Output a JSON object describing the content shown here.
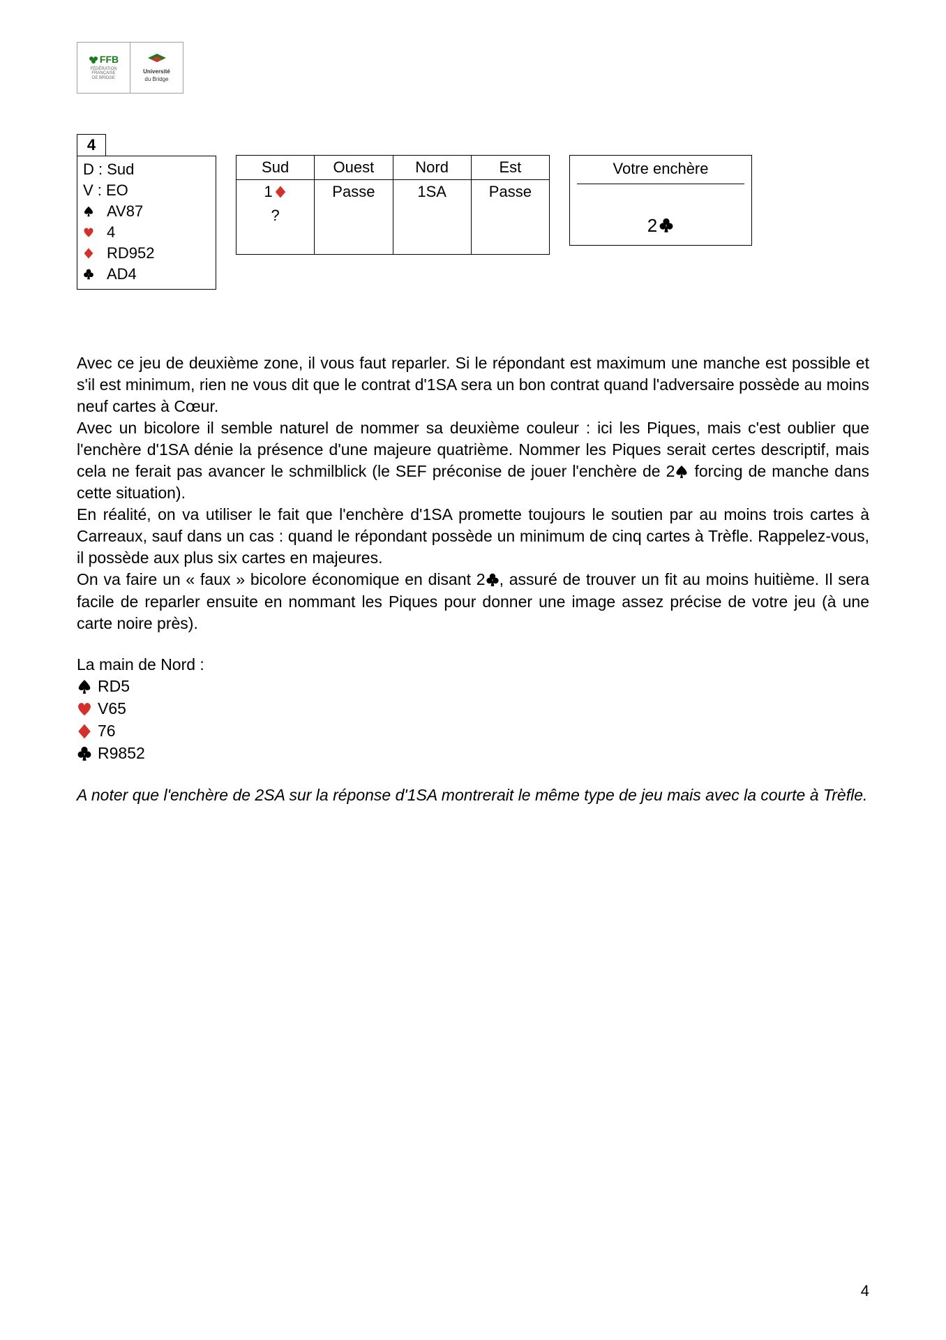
{
  "logo": {
    "ffb_label": "FFB",
    "ffb_sub": "FÉDÉRATION\nFRANÇAISE\nDE BRIDGE",
    "ub_line1": "Université",
    "ub_line2": "du Bridge"
  },
  "colors": {
    "red": "#d4302a",
    "black": "#000000",
    "logo_green": "#1b7a1b",
    "logo_red": "#c43a2e"
  },
  "deal": {
    "number": "4",
    "dealer_label": "D : Sud",
    "vul_label": "V : EO",
    "hand": {
      "spades": "AV87",
      "hearts": "4",
      "diamonds": "RD952",
      "clubs": "AD4"
    }
  },
  "bidding": {
    "headers": [
      "Sud",
      "Ouest",
      "Nord",
      "Est"
    ],
    "rows": [
      [
        {
          "text": "1",
          "suit": "diamond"
        },
        {
          "text": "Passe"
        },
        {
          "text": "1SA"
        },
        {
          "text": "Passe"
        }
      ],
      [
        {
          "text": "?"
        },
        {
          "text": ""
        },
        {
          "text": ""
        },
        {
          "text": ""
        }
      ]
    ]
  },
  "answer": {
    "title": "Votre enchère",
    "bid_text": "2",
    "bid_suit": "club"
  },
  "paragraphs": {
    "p1": "Avec ce jeu de deuxième zone, il vous faut reparler. Si le répondant est maximum une manche est possible et s'il est minimum, rien ne vous dit que le contrat d'1SA sera un bon contrat quand l'adversaire possède au moins neuf cartes à Cœur.",
    "p2a": "Avec un bicolore il semble naturel de nommer sa deuxième couleur : ici les Piques, mais c'est oublier que l'enchère d'1SA dénie la présence d'une majeure quatrième. Nommer les Piques serait certes descriptif, mais cela ne ferait pas avancer le schmilblick (le SEF préconise de jouer l'enchère de 2",
    "p2b": " forcing de manche dans cette situation).",
    "p3": "En réalité, on va utiliser le fait que l'enchère d'1SA promette toujours le soutien par au moins trois cartes à Carreaux, sauf dans un cas : quand le répondant possède un minimum de cinq cartes à Trèfle. Rappelez-vous, il possède aux plus six cartes en majeures.",
    "p4a": "On va faire un « faux » bicolore économique en disant 2",
    "p4b": ", assuré de trouver un fit au moins huitième. Il sera facile de reparler ensuite en nommant les Piques pour donner une image assez précise de votre jeu (à une carte noire près)."
  },
  "north": {
    "title": "La main de Nord :",
    "hand": {
      "spades": "RD5",
      "hearts": "V65",
      "diamonds": "76",
      "clubs": "R9852"
    }
  },
  "note": "A noter que l'enchère de 2SA sur la réponse d'1SA montrerait le même type de jeu mais avec la courte à Trèfle.",
  "page_number": "4",
  "suit_sizes": {
    "deal": 16,
    "bid": 18,
    "answer": 22,
    "inline": 20,
    "north": 22
  }
}
